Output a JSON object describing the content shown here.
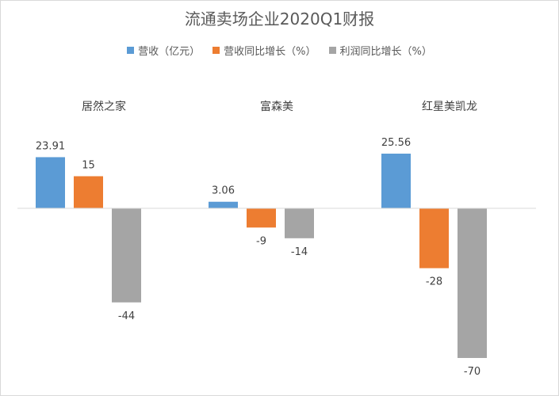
{
  "chart_data": {
    "type": "bar",
    "title": "流通卖场企业2020Q1财报",
    "categories": [
      "居然之家",
      "富森美",
      "红星美凯龙"
    ],
    "series": [
      {
        "name": "营收（亿元）",
        "color": "#5b9bd5",
        "values": [
          23.91,
          3.06,
          25.56
        ]
      },
      {
        "name": "营收同比增长（%）",
        "color": "#ed7d31",
        "values": [
          15,
          -9,
          -28
        ]
      },
      {
        "name": "利润同比增长（%）",
        "color": "#a5a5a5",
        "values": [
          -44,
          -14,
          -70
        ]
      }
    ],
    "ylim": [
      -70,
      25.56
    ],
    "grid": false,
    "legend_position": "top"
  }
}
